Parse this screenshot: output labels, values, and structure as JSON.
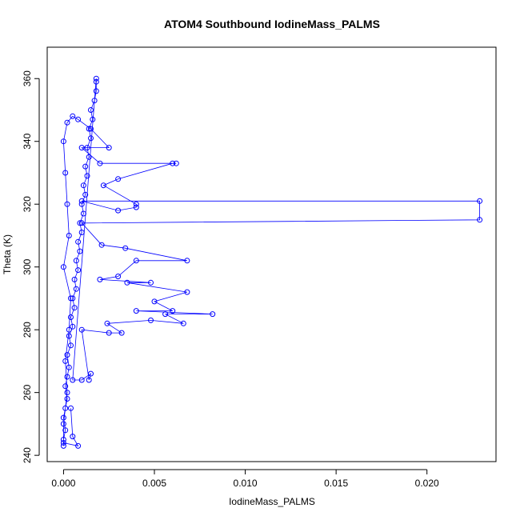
{
  "chart_data": {
    "type": "scatter",
    "title": "ATOM4 Southbound IodineMass_PALMS",
    "xlabel": "IodineMass_PALMS",
    "ylabel": "Theta (K)",
    "xlim": [
      -0.0009,
      0.0238
    ],
    "ylim": [
      238,
      370
    ],
    "x_ticks": [
      0.0,
      0.005,
      0.01,
      0.015,
      0.02
    ],
    "x_tick_labels": [
      "0.000",
      "0.005",
      "0.010",
      "0.015",
      "0.020"
    ],
    "y_ticks": [
      240,
      260,
      280,
      300,
      320,
      340,
      360
    ],
    "y_tick_labels": [
      "240",
      "260",
      "280",
      "300",
      "320",
      "340",
      "360"
    ],
    "grid": false,
    "legend": "none",
    "marker": "open-circle",
    "line": "connected",
    "color": "#0000ff",
    "series": [
      {
        "points": [
          [
            0.0,
            243
          ],
          [
            0.0,
            245
          ],
          [
            0.0001,
            248
          ],
          [
            0.0,
            252
          ],
          [
            0.0001,
            255
          ],
          [
            0.0002,
            258
          ],
          [
            0.0001,
            262
          ],
          [
            0.0002,
            265
          ],
          [
            0.0003,
            268
          ],
          [
            0.0002,
            272
          ],
          [
            0.0004,
            275
          ],
          [
            0.0003,
            278
          ],
          [
            0.0005,
            281
          ],
          [
            0.0004,
            284
          ],
          [
            0.0006,
            287
          ],
          [
            0.0005,
            290
          ],
          [
            0.0007,
            293
          ],
          [
            0.0006,
            296
          ],
          [
            0.0008,
            299
          ],
          [
            0.0007,
            302
          ],
          [
            0.0009,
            305
          ],
          [
            0.0008,
            308
          ],
          [
            0.001,
            311
          ],
          [
            0.0009,
            314
          ],
          [
            0.0011,
            317
          ],
          [
            0.001,
            320
          ],
          [
            0.0012,
            323
          ],
          [
            0.0011,
            326
          ],
          [
            0.0013,
            329
          ],
          [
            0.0012,
            332
          ],
          [
            0.0014,
            335
          ],
          [
            0.0013,
            338
          ],
          [
            0.0015,
            341
          ],
          [
            0.0014,
            344
          ],
          [
            0.0016,
            347
          ],
          [
            0.0015,
            350
          ],
          [
            0.0017,
            353
          ],
          [
            0.0018,
            356
          ],
          [
            0.0018,
            359
          ],
          [
            0.0018,
            360
          ],
          [
            0.0005,
            264
          ],
          [
            0.001,
            264
          ],
          [
            0.0015,
            266
          ],
          [
            0.0014,
            264
          ],
          [
            0.001,
            280
          ],
          [
            0.0025,
            279
          ],
          [
            0.0032,
            279
          ],
          [
            0.0024,
            282
          ],
          [
            0.0048,
            283
          ],
          [
            0.0066,
            282
          ],
          [
            0.0056,
            285
          ],
          [
            0.0082,
            285
          ],
          [
            0.004,
            286
          ],
          [
            0.006,
            286
          ],
          [
            0.005,
            289
          ],
          [
            0.0068,
            292
          ],
          [
            0.0035,
            295
          ],
          [
            0.0048,
            295
          ],
          [
            0.002,
            296
          ],
          [
            0.003,
            297
          ],
          [
            0.004,
            302
          ],
          [
            0.0068,
            302
          ],
          [
            0.0034,
            306
          ],
          [
            0.0021,
            307
          ],
          [
            0.001,
            314
          ],
          [
            0.0229,
            315
          ],
          [
            0.0229,
            321
          ],
          [
            0.001,
            321
          ],
          [
            0.003,
            318
          ],
          [
            0.004,
            319
          ],
          [
            0.004,
            320
          ],
          [
            0.0022,
            326
          ],
          [
            0.003,
            328
          ],
          [
            0.006,
            333
          ],
          [
            0.0062,
            333
          ],
          [
            0.002,
            333
          ],
          [
            0.001,
            338
          ],
          [
            0.0025,
            338
          ],
          [
            0.0015,
            344
          ],
          [
            0.0008,
            347
          ],
          [
            0.0005,
            348
          ],
          [
            0.0002,
            346
          ],
          [
            0.0,
            340
          ],
          [
            0.0001,
            330
          ],
          [
            0.0002,
            320
          ],
          [
            0.0003,
            310
          ],
          [
            0.0,
            300
          ],
          [
            0.0004,
            290
          ],
          [
            0.0003,
            280
          ],
          [
            0.0001,
            270
          ],
          [
            0.0002,
            260
          ],
          [
            0.0,
            250
          ],
          [
            0.0,
            244
          ],
          [
            0.0008,
            243
          ],
          [
            0.0005,
            246
          ],
          [
            0.0004,
            255
          ]
        ]
      }
    ]
  }
}
